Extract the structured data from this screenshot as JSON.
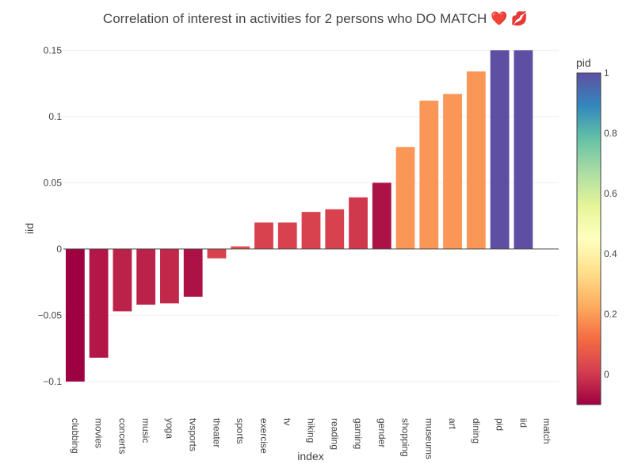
{
  "chart_data": {
    "type": "bar",
    "title": "Correlation of interest in activities for 2 persons who DO MATCH ❤️ 💋",
    "xlabel": "index",
    "ylabel": "iid",
    "categories": [
      "clubbing",
      "movies",
      "concerts",
      "music",
      "yoga",
      "tvsports",
      "theater",
      "sports",
      "exercise",
      "tv",
      "hiking",
      "reading",
      "gaming",
      "gender",
      "shopping",
      "museums",
      "art",
      "dining",
      "pid",
      "iid",
      "match"
    ],
    "values": [
      -0.1,
      -0.082,
      -0.047,
      -0.042,
      -0.041,
      -0.036,
      -0.007,
      0.002,
      0.02,
      0.02,
      0.028,
      0.03,
      0.039,
      0.05,
      0.077,
      0.112,
      0.117,
      0.134,
      0.15,
      0.15,
      null
    ],
    "color_values": [
      -0.1,
      -0.06,
      -0.04,
      -0.04,
      -0.03,
      -0.07,
      0.02,
      0.05,
      0.02,
      0.02,
      0.02,
      0.02,
      0.0,
      -0.07,
      0.19,
      0.19,
      0.19,
      0.19,
      1.0,
      1.0,
      null
    ],
    "ylim": [
      -0.118,
      0.152
    ],
    "y_ticks": [
      0.15,
      0.1,
      0.05,
      0,
      -0.05,
      -0.1
    ],
    "y_tick_labels": [
      "0.15",
      "0.1",
      "0.05",
      "0",
      "−0.05",
      "−0.1"
    ],
    "grid": true,
    "colorbar": {
      "title": "pid",
      "range": [
        -0.1,
        1.0
      ],
      "ticks": [
        1,
        0.8,
        0.6,
        0.4,
        0.2,
        0
      ],
      "tick_labels": [
        "1",
        "0.8",
        "0.6",
        "0.4",
        "0.2",
        "0"
      ],
      "colorscale": [
        "#9e0142",
        "#d53e4f",
        "#f46d43",
        "#fdae61",
        "#fee08b",
        "#ffffbf",
        "#e6f598",
        "#abdda4",
        "#66c2a5",
        "#3288bd",
        "#5e4fa2"
      ]
    }
  }
}
